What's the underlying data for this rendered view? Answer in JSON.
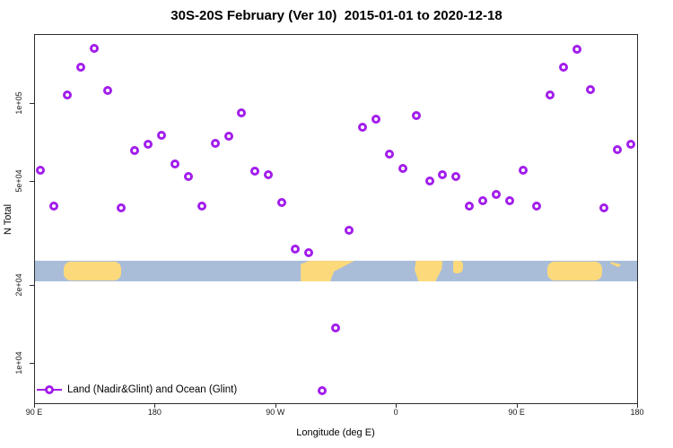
{
  "chart_data": {
    "type": "scatter",
    "title": "30S-20S February (Ver 10)  2015-01-01 to 2020-12-18",
    "xlabel": "Longitude (deg E)",
    "ylabel": "N Total",
    "legend": [
      "Land (Nadir&Glint) and Ocean (Glint)"
    ],
    "marker": {
      "shape": "open-circle",
      "color": "#a21deb"
    },
    "x_axis": {
      "range": [
        90,
        540
      ],
      "ticks": [
        {
          "lon": 90,
          "label": "90 E"
        },
        {
          "lon": 180,
          "label": "180"
        },
        {
          "lon": 270,
          "label": "90 W"
        },
        {
          "lon": 360,
          "label": "0"
        },
        {
          "lon": 450,
          "label": "90 E"
        },
        {
          "lon": 540,
          "label": "180"
        }
      ]
    },
    "y_axis": {
      "scale": "log",
      "range": [
        7000,
        184000
      ],
      "ticks": [
        {
          "value": 100000,
          "label": "1e+05"
        },
        {
          "value": 50000,
          "label": "5e+04"
        },
        {
          "value": 20000,
          "label": "2e+04"
        },
        {
          "value": 10000,
          "label": "1e+04"
        }
      ]
    },
    "points": [
      {
        "lon": 95,
        "n": 55000
      },
      {
        "lon": 105,
        "n": 40000
      },
      {
        "lon": 115,
        "n": 107000
      },
      {
        "lon": 125,
        "n": 137000
      },
      {
        "lon": 135,
        "n": 162000
      },
      {
        "lon": 145,
        "n": 112000
      },
      {
        "lon": 155,
        "n": 39500
      },
      {
        "lon": 165,
        "n": 65500
      },
      {
        "lon": 175,
        "n": 69500
      },
      {
        "lon": 185,
        "n": 75000
      },
      {
        "lon": 195,
        "n": 58500
      },
      {
        "lon": 205,
        "n": 52000
      },
      {
        "lon": 215,
        "n": 40000
      },
      {
        "lon": 225,
        "n": 70000
      },
      {
        "lon": 235,
        "n": 74500
      },
      {
        "lon": 245,
        "n": 91500
      },
      {
        "lon": 255,
        "n": 54500
      },
      {
        "lon": 265,
        "n": 53000
      },
      {
        "lon": 275,
        "n": 41500
      },
      {
        "lon": 285,
        "n": 27500
      },
      {
        "lon": 295,
        "n": 26500
      },
      {
        "lon": 305,
        "n": 7800
      },
      {
        "lon": 315,
        "n": 13600
      },
      {
        "lon": 325,
        "n": 32500
      },
      {
        "lon": 335,
        "n": 80500
      },
      {
        "lon": 345,
        "n": 86500
      },
      {
        "lon": 355,
        "n": 63500
      },
      {
        "lon": 365,
        "n": 56000
      },
      {
        "lon": 375,
        "n": 89500
      },
      {
        "lon": 385,
        "n": 50000
      },
      {
        "lon": 395,
        "n": 53000
      },
      {
        "lon": 405,
        "n": 52000
      },
      {
        "lon": 415,
        "n": 40000
      },
      {
        "lon": 425,
        "n": 42000
      },
      {
        "lon": 435,
        "n": 44500
      },
      {
        "lon": 445,
        "n": 42000
      },
      {
        "lon": 455,
        "n": 55000
      },
      {
        "lon": 465,
        "n": 40000
      },
      {
        "lon": 475,
        "n": 107000
      },
      {
        "lon": 485,
        "n": 137000
      },
      {
        "lon": 495,
        "n": 161000
      },
      {
        "lon": 505,
        "n": 113000
      },
      {
        "lon": 515,
        "n": 39500
      },
      {
        "lon": 525,
        "n": 66000
      },
      {
        "lon": 535,
        "n": 69500
      }
    ]
  },
  "map_strip": {
    "ocean_color": "#a9bdd9",
    "land_color": "#fcd97b",
    "n_range": [
      20600,
      24700
    ],
    "lands": [
      {
        "name": "land-australia",
        "lon": [
          112,
          155
        ],
        "cls": "land-aus"
      },
      {
        "name": "land-south-america",
        "lon": [
          289,
          329
        ],
        "cls": "land-sa"
      },
      {
        "name": "land-africa",
        "lon": [
          374,
          395
        ],
        "cls": "land-africa"
      },
      {
        "name": "land-madagascar",
        "lon": [
          403,
          410
        ],
        "cls": "land-mad"
      },
      {
        "name": "land-australia-wrap",
        "lon": [
          473,
          514
        ],
        "cls": "land-aus"
      },
      {
        "name": "land-pacific-islands",
        "lon": [
          520,
          528
        ],
        "cls": "land-nc"
      }
    ]
  }
}
